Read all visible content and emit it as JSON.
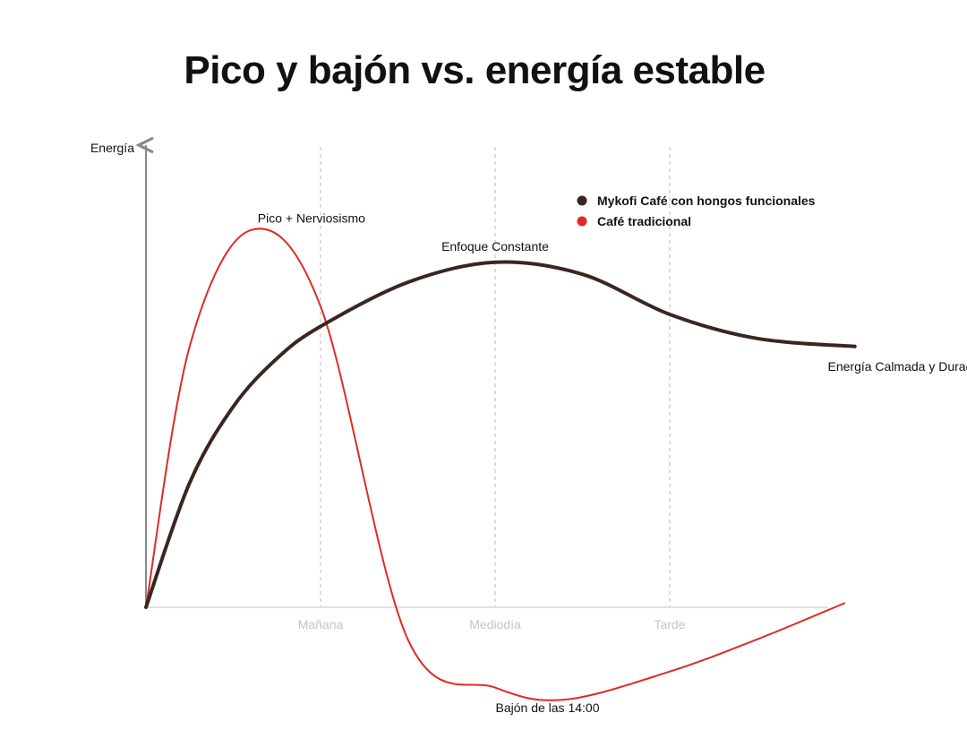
{
  "chart_data": {
    "type": "line",
    "title": "Pico y bajón vs. energía estable",
    "ylabel": "Energía",
    "xlabel": "",
    "x_ticks": [
      "Mañana",
      "Mediodía",
      "Tarde"
    ],
    "ylim": [
      -30,
      100
    ],
    "xlim": [
      0,
      4
    ],
    "grid": "vertical dashed at ticks",
    "legend_position": "top-right",
    "series": [
      {
        "name": "Mykofi Café con hongos funcionales",
        "color": "#3a2620",
        "x": [
          0,
          0.25,
          0.5,
          0.75,
          1,
          1.5,
          2,
          2.5,
          3,
          3.5,
          4.06
        ],
        "y": [
          0,
          31,
          50,
          62,
          70,
          81,
          86,
          83,
          73,
          67,
          65
        ]
      },
      {
        "name": "Café tradicional",
        "color": "#e02a24",
        "x": [
          0,
          0.25,
          0.6,
          1,
          1.5,
          2,
          2.4,
          3,
          3.5,
          4.0
        ],
        "y": [
          0,
          65,
          94,
          75,
          -8,
          -20,
          -23,
          -16,
          -8,
          1
        ]
      }
    ],
    "annotations": [
      {
        "text": "Pico + Nerviosismo",
        "x": 0.65,
        "y": 97
      },
      {
        "text": "Enfoque Constante",
        "x": 2.0,
        "y": 90
      },
      {
        "text": "Energía Calmada y Duradera",
        "x": 4.1,
        "y": 60
      },
      {
        "text": "Bajón de las 14:00",
        "x": 2.3,
        "y": -25
      }
    ]
  }
}
